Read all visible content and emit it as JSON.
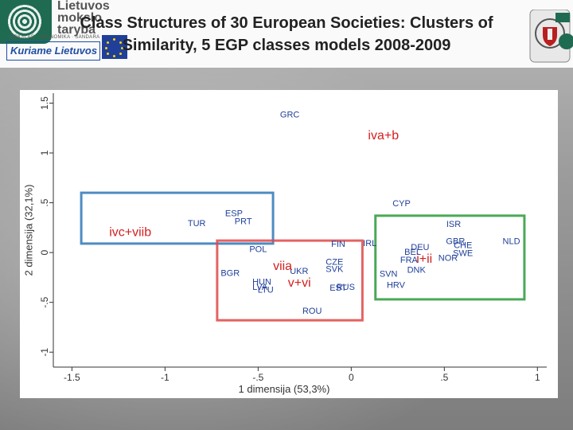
{
  "slide": {
    "title_line1": "Class Structures of 30 European Societies: Clusters of",
    "title_line2": "Similarity, 5 EGP classes models 2008-2009"
  },
  "logos": {
    "left_text": [
      "Lietuvos",
      "mokslo",
      "taryba"
    ],
    "left_subtext": "MOKSLAS · EKONOMIKA · SANDARA",
    "left_box_text": "Kuriame Lietuvos",
    "eu_color": "#1f3f9a",
    "brand_green": "#1f6b52"
  },
  "chart_data": {
    "type": "scatter",
    "xlabel": "1 dimensija (53,3%)",
    "ylabel": "2 dimensija (32,1%)",
    "xlim": [
      -1.6,
      1.05
    ],
    "ylim": [
      -1.15,
      1.6
    ],
    "xticks": [
      -1.5,
      -1,
      -0.5,
      0,
      0.5,
      1
    ],
    "xtick_labels": [
      "-1.5",
      "-1",
      "-.5",
      "0",
      ".5",
      "1"
    ],
    "yticks": [
      -1,
      -0.5,
      0,
      0.5,
      1,
      1.5
    ],
    "ytick_labels": [
      "-1",
      "-.5",
      "0",
      ".5",
      "1",
      "1.5"
    ],
    "grid": false,
    "point_color": "#1f3f9a",
    "points": [
      {
        "label": "GRC",
        "x": -0.33,
        "y": 1.38
      },
      {
        "label": "CYP",
        "x": 0.27,
        "y": 0.49
      },
      {
        "label": "ESP",
        "x": -0.63,
        "y": 0.39
      },
      {
        "label": "PRT",
        "x": -0.58,
        "y": 0.31
      },
      {
        "label": "TUR",
        "x": -0.83,
        "y": 0.29
      },
      {
        "label": "ISR",
        "x": 0.55,
        "y": 0.28
      },
      {
        "label": "GBR",
        "x": 0.56,
        "y": 0.11
      },
      {
        "label": "CHE",
        "x": 0.6,
        "y": 0.07
      },
      {
        "label": "SWE",
        "x": 0.6,
        "y": -0.01
      },
      {
        "label": "NLD",
        "x": 0.86,
        "y": 0.11
      },
      {
        "label": "FIN",
        "x": -0.07,
        "y": 0.08
      },
      {
        "label": "IRL",
        "x": 0.1,
        "y": 0.09
      },
      {
        "label": "DEU",
        "x": 0.37,
        "y": 0.05
      },
      {
        "label": "BEL",
        "x": 0.33,
        "y": 0.0
      },
      {
        "label": "FRA",
        "x": 0.31,
        "y": -0.08
      },
      {
        "label": "NOR",
        "x": 0.52,
        "y": -0.06
      },
      {
        "label": "POL",
        "x": -0.5,
        "y": 0.03
      },
      {
        "label": "CZE",
        "x": -0.09,
        "y": -0.1
      },
      {
        "label": "SVK",
        "x": -0.09,
        "y": -0.17
      },
      {
        "label": "DNK",
        "x": 0.35,
        "y": -0.18
      },
      {
        "label": "SVN",
        "x": 0.2,
        "y": -0.22
      },
      {
        "label": "BGR",
        "x": -0.65,
        "y": -0.21
      },
      {
        "label": "UKR",
        "x": -0.28,
        "y": -0.19
      },
      {
        "label": "HRV",
        "x": 0.24,
        "y": -0.33
      },
      {
        "label": "HUN",
        "x": -0.48,
        "y": -0.3
      },
      {
        "label": "LVA",
        "x": -0.49,
        "y": -0.35
      },
      {
        "label": "LTU",
        "x": -0.46,
        "y": -0.38
      },
      {
        "label": "EST",
        "x": -0.07,
        "y": -0.36
      },
      {
        "label": "RUS",
        "x": -0.03,
        "y": -0.35
      },
      {
        "label": "ROU",
        "x": -0.21,
        "y": -0.59
      }
    ],
    "clusters": [
      {
        "label": "iva+b",
        "color": "#d42020",
        "label_x": 0.09,
        "label_y": 1.17,
        "x0": null,
        "x1": null,
        "y0": null,
        "y1": null
      },
      {
        "label": "ivc+viib",
        "color": "#d42020",
        "label_x": -1.3,
        "label_y": 0.2,
        "x0": -1.45,
        "x1": -0.42,
        "y0": 0.09,
        "y1": 0.6,
        "box_color": "#2f78b8"
      },
      {
        "label": "viia",
        "color": "#d42020",
        "label_x": -0.42,
        "label_y": -0.14,
        "x0": -0.72,
        "x1": 0.06,
        "y0": -0.68,
        "y1": 0.12,
        "box_color": "#e04848"
      },
      {
        "label": "v+vi",
        "color": "#d42020",
        "label_x": -0.34,
        "label_y": -0.31,
        "x0": null,
        "x1": null,
        "y0": null,
        "y1": null
      },
      {
        "label": "i+ii",
        "color": "#d42020",
        "label_x": 0.35,
        "label_y": -0.07,
        "x0": 0.13,
        "x1": 0.93,
        "y0": -0.47,
        "y1": 0.37,
        "box_color": "#2a9a3a"
      }
    ]
  }
}
